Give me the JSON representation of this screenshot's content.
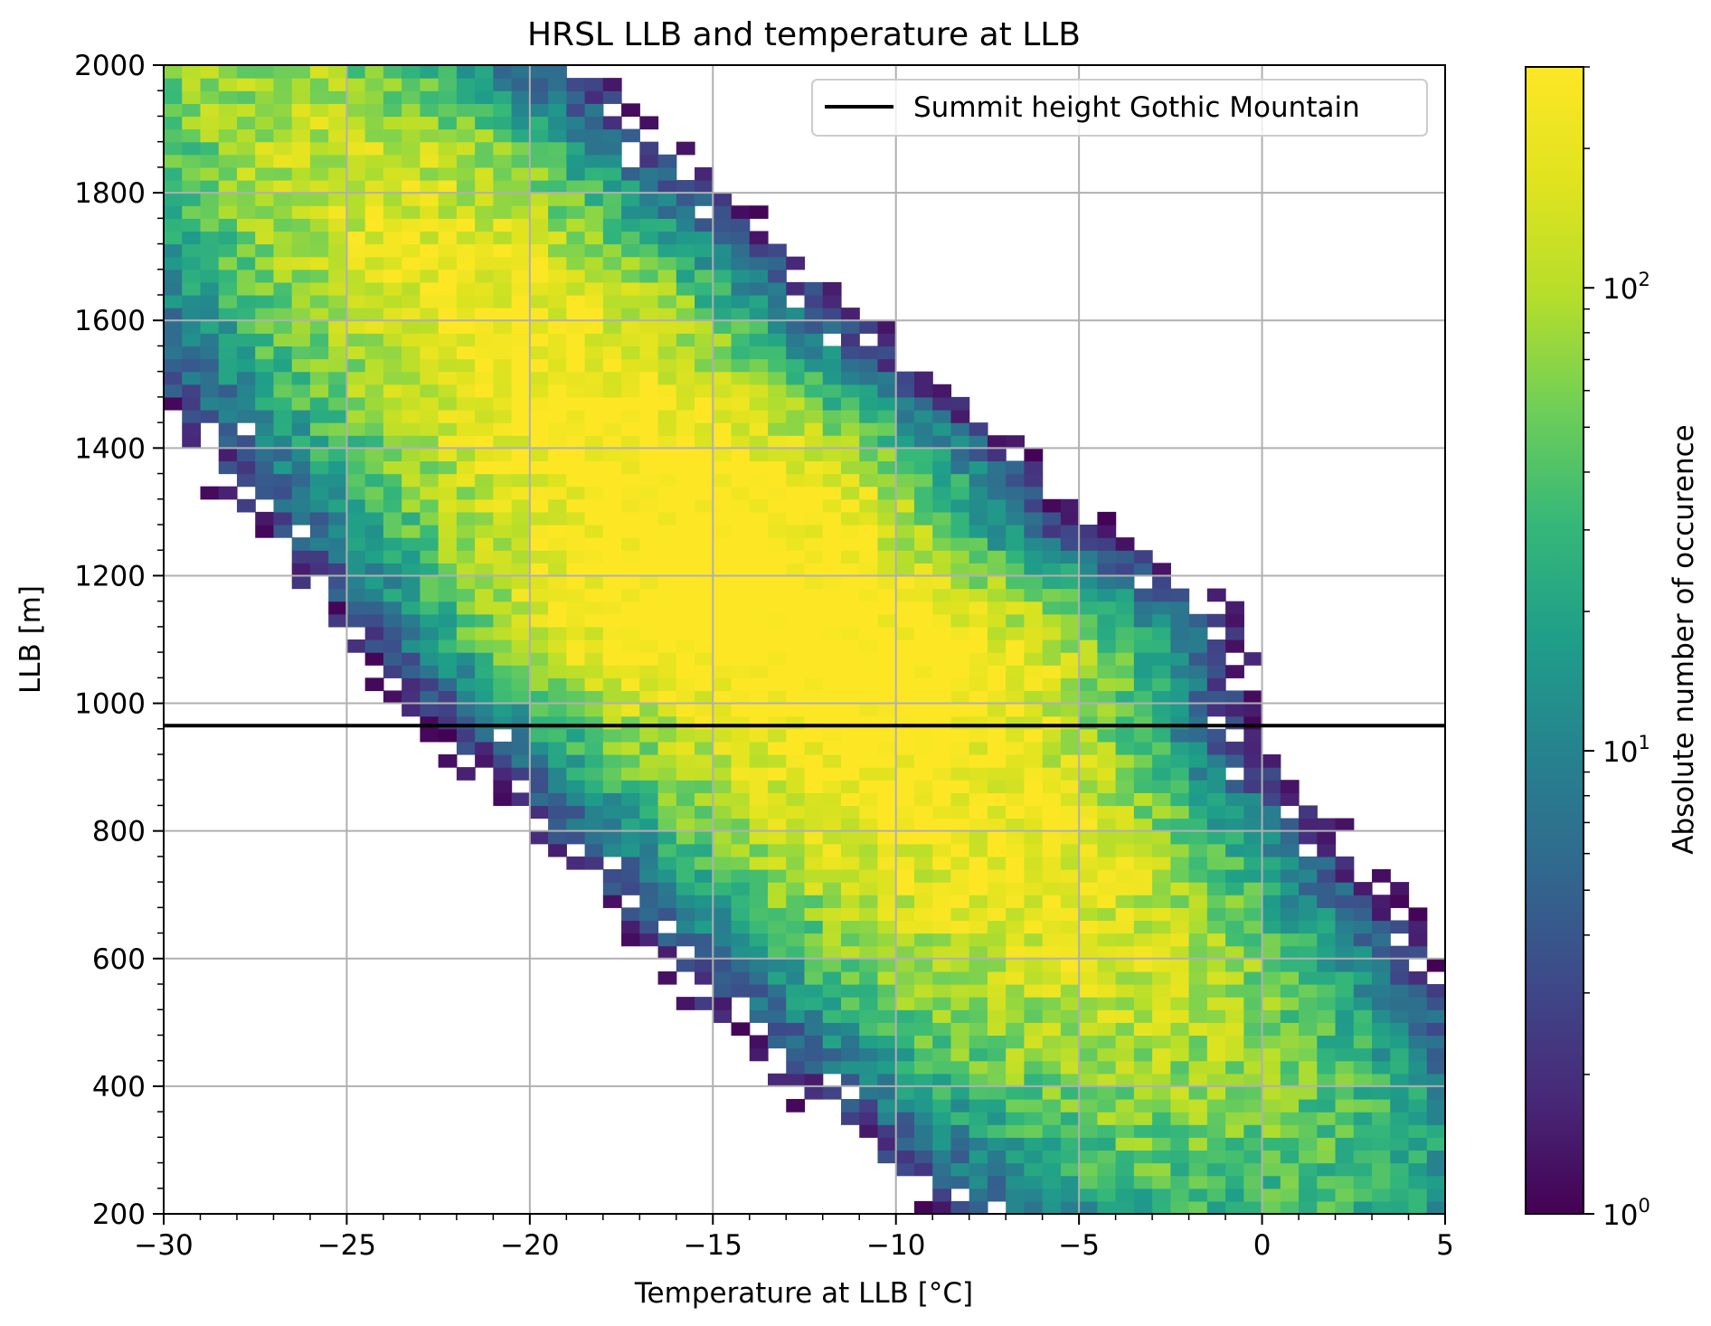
{
  "chart_data": {
    "type": "heatmap",
    "title": "HRSL LLB and temperature at LLB",
    "xlabel": "Temperature at LLB [°C]",
    "ylabel": "LLB [m]",
    "xlim": [
      -30,
      5
    ],
    "ylim": [
      200,
      2000
    ],
    "xticks": [
      -30,
      -25,
      -20,
      -15,
      -10,
      -5,
      0,
      5
    ],
    "xtick_labels": [
      "−30",
      "−25",
      "−20",
      "−15",
      "−10",
      "−5",
      "0",
      "5"
    ],
    "yticks": [
      200,
      400,
      600,
      800,
      1000,
      1200,
      1400,
      1600,
      1800,
      2000
    ],
    "ytick_labels": [
      "200",
      "400",
      "600",
      "800",
      "1000",
      "1200",
      "1400",
      "1600",
      "1800",
      "2000"
    ],
    "grid": true,
    "bin_width_x": 0.5,
    "bin_height_y": 20,
    "colorbar": {
      "label": "Absolute number of occurence",
      "scale": "log",
      "range": [
        1,
        300
      ],
      "colormap": "viridis",
      "ticks": [
        {
          "value": 1,
          "base": "10",
          "exp": "0"
        },
        {
          "value": 10,
          "base": "10",
          "exp": "1"
        },
        {
          "value": 100,
          "base": "10",
          "exp": "2"
        }
      ]
    },
    "reference_line": {
      "name": "Summit height Gothic Mountain",
      "y": 965,
      "color": "#000000"
    },
    "legend": {
      "location": "upper right",
      "entries": [
        "Summit height Gothic Mountain"
      ]
    },
    "density_model": {
      "ridges": [
        {
          "slope_m_per_degC": -62,
          "intercept_m_at_0C": 420,
          "peak_y": 1200,
          "peak_count": 200
        },
        {
          "slope_m_per_degC": -62,
          "intercept_m_at_0C": 260,
          "peak_y": 1250,
          "peak_count": 200
        },
        {
          "slope_m_per_degC": -62,
          "intercept_m_at_0C": 40,
          "peak_y": 950,
          "peak_count": 90
        }
      ],
      "hotspots": [
        {
          "x": -15.2,
          "y": 1130,
          "count": 280
        },
        {
          "x": -13.2,
          "y": 1310,
          "count": 260
        },
        {
          "x": -11.0,
          "y": 1050,
          "count": 260
        },
        {
          "x": -7.6,
          "y": 1070,
          "count": 250
        },
        {
          "x": -17.2,
          "y": 1170,
          "count": 220
        }
      ]
    }
  }
}
